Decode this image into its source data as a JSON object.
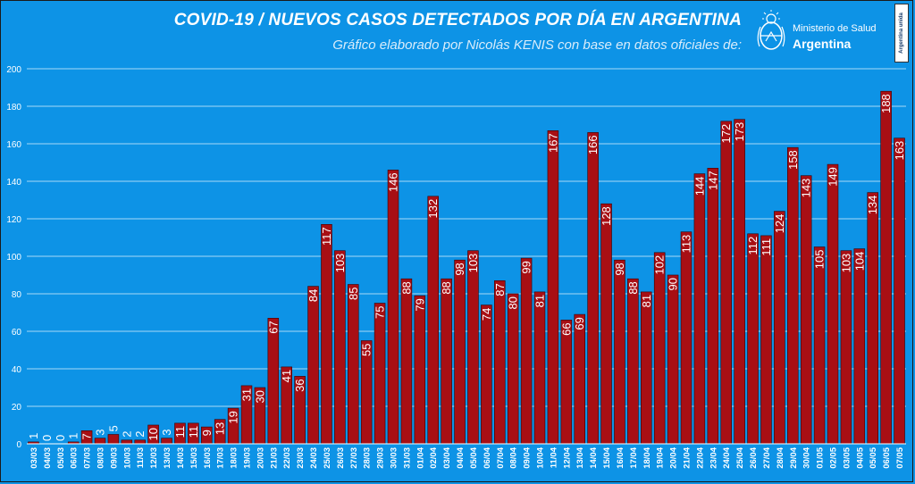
{
  "header": {
    "title": "COVID-19  /  NUEVOS CASOS DETECTADOS POR DÍA EN ARGENTINA",
    "subtitle": "Gráfico elaborado por Nicolás KENIS con base en datos oficiales de:",
    "logo_ministry": "Ministerio de Salud",
    "logo_country": "Argentina",
    "tag": "Argentina unida"
  },
  "colors": {
    "background": "#0d93e6",
    "bar_fill": "#a80f14",
    "bar_stroke": "#3a0000",
    "text": "#ffffff",
    "grid": "#ffffff"
  },
  "chart_data": {
    "type": "bar",
    "title": "COVID-19  /  NUEVOS CASOS DETECTADOS POR DÍA EN ARGENTINA",
    "xlabel": "",
    "ylabel": "",
    "ylim": [
      0,
      200
    ],
    "yticks": [
      0,
      20,
      40,
      60,
      80,
      100,
      120,
      140,
      160,
      180,
      200
    ],
    "grid": true,
    "legend": "none",
    "categories": [
      "03/03",
      "04/03",
      "05/03",
      "06/03",
      "07/03",
      "08/03",
      "09/03",
      "10/03",
      "11/03",
      "12/03",
      "13/03",
      "14/03",
      "15/03",
      "16/03",
      "17/03",
      "18/03",
      "19/03",
      "20/03",
      "21/03",
      "22/03",
      "23/03",
      "24/03",
      "25/03",
      "26/03",
      "27/03",
      "28/03",
      "29/03",
      "30/03",
      "31/03",
      "01/04",
      "02/04",
      "03/04",
      "04/04",
      "05/04",
      "06/04",
      "07/04",
      "08/04",
      "09/04",
      "10/04",
      "11/04",
      "12/04",
      "13/04",
      "14/04",
      "15/04",
      "16/04",
      "17/04",
      "18/04",
      "19/04",
      "20/04",
      "21/04",
      "22/04",
      "23/04",
      "24/04",
      "25/04",
      "26/04",
      "27/04",
      "28/04",
      "29/04",
      "30/04",
      "01/05",
      "02/05",
      "03/05",
      "04/05",
      "05/05",
      "06/05",
      "07/05"
    ],
    "values": [
      1,
      0,
      0,
      1,
      7,
      3,
      5,
      2,
      2,
      10,
      3,
      11,
      11,
      9,
      13,
      19,
      31,
      30,
      67,
      41,
      36,
      84,
      117,
      103,
      85,
      55,
      75,
      146,
      88,
      79,
      132,
      88,
      98,
      103,
      74,
      87,
      80,
      99,
      81,
      167,
      66,
      69,
      166,
      128,
      98,
      88,
      81,
      102,
      90,
      113,
      144,
      147,
      172,
      173,
      112,
      111,
      124,
      158,
      143,
      105,
      149,
      103,
      104,
      134,
      188,
      163
    ]
  }
}
